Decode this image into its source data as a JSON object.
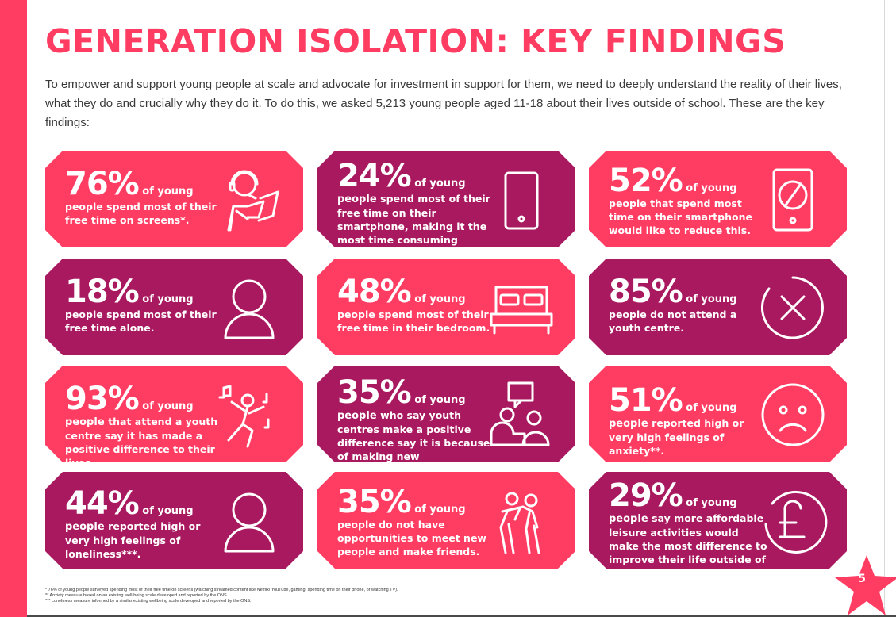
{
  "header": {
    "title": "GENERATION ISOLATION: KEY FINDINGS",
    "intro": "To empower and support young people at scale and advocate for investment in support for them, we need to deeply understand the reality of their lives, what they do and crucially why they do it. To do this, we asked 5,213 young people aged 11-18 about their lives outside of school. These are the key findings:"
  },
  "colors": {
    "pink": "#ff3d63",
    "purple": "#a8195f"
  },
  "findings": [
    {
      "stat": "76%",
      "lead": "of young",
      "rest": "people spend most of their free time on screens*.",
      "icon": "gamer-icon",
      "color": "pink"
    },
    {
      "stat": "24%",
      "lead": "of young people",
      "rest": "spend most of their free time on their smartphone, making it the most time consuming activity outside of school.",
      "icon": "smartphone-icon",
      "color": "purple"
    },
    {
      "stat": "52%",
      "lead": "of young",
      "rest": "people that spend most time on their smartphone would like to reduce this.",
      "icon": "no-phone-icon",
      "color": "pink"
    },
    {
      "stat": "18%",
      "lead": "of young",
      "rest": "people spend most of their free time alone.",
      "icon": "person-icon",
      "color": "purple"
    },
    {
      "stat": "48%",
      "lead": "of young",
      "rest": "people spend most of their free time in their bedroom.",
      "icon": "bed-icon",
      "color": "pink"
    },
    {
      "stat": "85%",
      "lead": "of young",
      "rest": "people do not attend a youth centre.",
      "icon": "cross-circle-icon",
      "color": "purple"
    },
    {
      "stat": "93%",
      "lead": "of young people",
      "rest": "that attend a youth centre say it has made a positive difference to their lives.",
      "icon": "dancer-icon",
      "color": "pink"
    },
    {
      "stat": "35%",
      "lead": "of young people",
      "rest": "who say youth centres make a positive difference say it is because of making new friends/social interactions.",
      "icon": "conversation-icon",
      "color": "purple"
    },
    {
      "stat": "51%",
      "lead": "of young people",
      "rest": "reported high or very high feelings of anxiety**.",
      "icon": "sad-face-icon",
      "color": "pink"
    },
    {
      "stat": "44%",
      "lead": "of young people",
      "rest": "reported high or very high feelings of loneliness***.",
      "icon": "person-icon",
      "color": "purple"
    },
    {
      "stat": "35%",
      "lead": "of young",
      "rest": "people do not have opportunities to meet new people and make friends.",
      "icon": "friends-icon",
      "color": "pink"
    },
    {
      "stat": "29%",
      "lead": "of young people",
      "rest": "say more affordable leisure activities would make the most difference to improve their life outside of school.",
      "icon": "pound-coin-icon",
      "color": "purple"
    }
  ],
  "footnotes": [
    "* 76% of young people surveyed spending most of their free time on screens (watching streamed content like Netflix/ YouTube, gaming, spending time on their phone, or watching TV).",
    "** Anxiety measure based on an existing well-being scale developed and reported by the ONS.",
    "*** Loneliness measure informed by a similar existing wellbeing scale developed and reported by the ONS."
  ],
  "page_number": "5"
}
